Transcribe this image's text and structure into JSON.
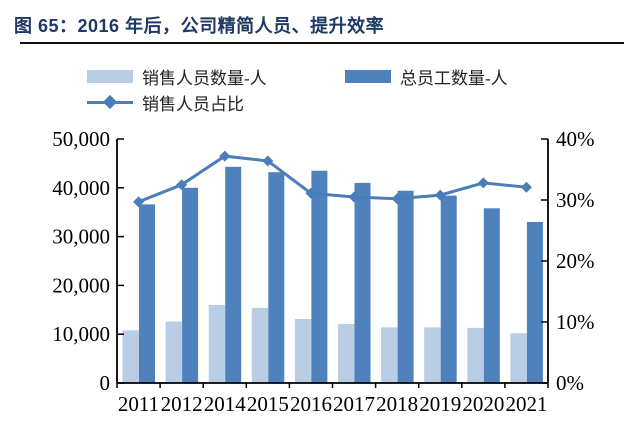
{
  "figure": {
    "title": "图 65：2016 年后，公司精简人员、提升效率"
  },
  "colors": {
    "title": "#1f3864",
    "rule": "#111111",
    "sales_bar": "#b9cde5",
    "total_bar": "#4f81bd",
    "ratio_line": "#4a7ebb",
    "axis": "#000000",
    "label": "#000000"
  },
  "chart_data": {
    "type": "bar",
    "title": "图 65：2016 年后，公司精简人员、提升效率",
    "categories": [
      "2011",
      "2012",
      "2014",
      "2015",
      "2016",
      "2017",
      "2018",
      "2019",
      "2020",
      "2021"
    ],
    "series": [
      {
        "name": "销售人员数量-人",
        "type": "bar",
        "axis": "left",
        "values": [
          10800,
          12600,
          16000,
          15400,
          13100,
          12100,
          11400,
          11400,
          11300,
          10200
        ]
      },
      {
        "name": "总员工数量-人",
        "type": "bar",
        "axis": "left",
        "values": [
          36600,
          40000,
          44300,
          43200,
          43500,
          41000,
          39400,
          38400,
          35800,
          33000
        ]
      },
      {
        "name": "销售人员占比",
        "type": "line",
        "axis": "right",
        "values": [
          29.7,
          32.5,
          37.2,
          36.4,
          31.1,
          30.5,
          30.2,
          30.8,
          32.8,
          32.1
        ]
      }
    ],
    "left_axis": {
      "min": 0,
      "max": 50000,
      "tick_step": 10000,
      "tick_labels": [
        "0",
        "10,000",
        "20,000",
        "30,000",
        "40,000",
        "50,000"
      ]
    },
    "right_axis": {
      "min": 0,
      "max": 40,
      "tick_step": 10,
      "tick_labels": [
        "0%",
        "10%",
        "20%",
        "30%",
        "40%"
      ]
    },
    "legend_position": "top-left",
    "grid": false
  }
}
